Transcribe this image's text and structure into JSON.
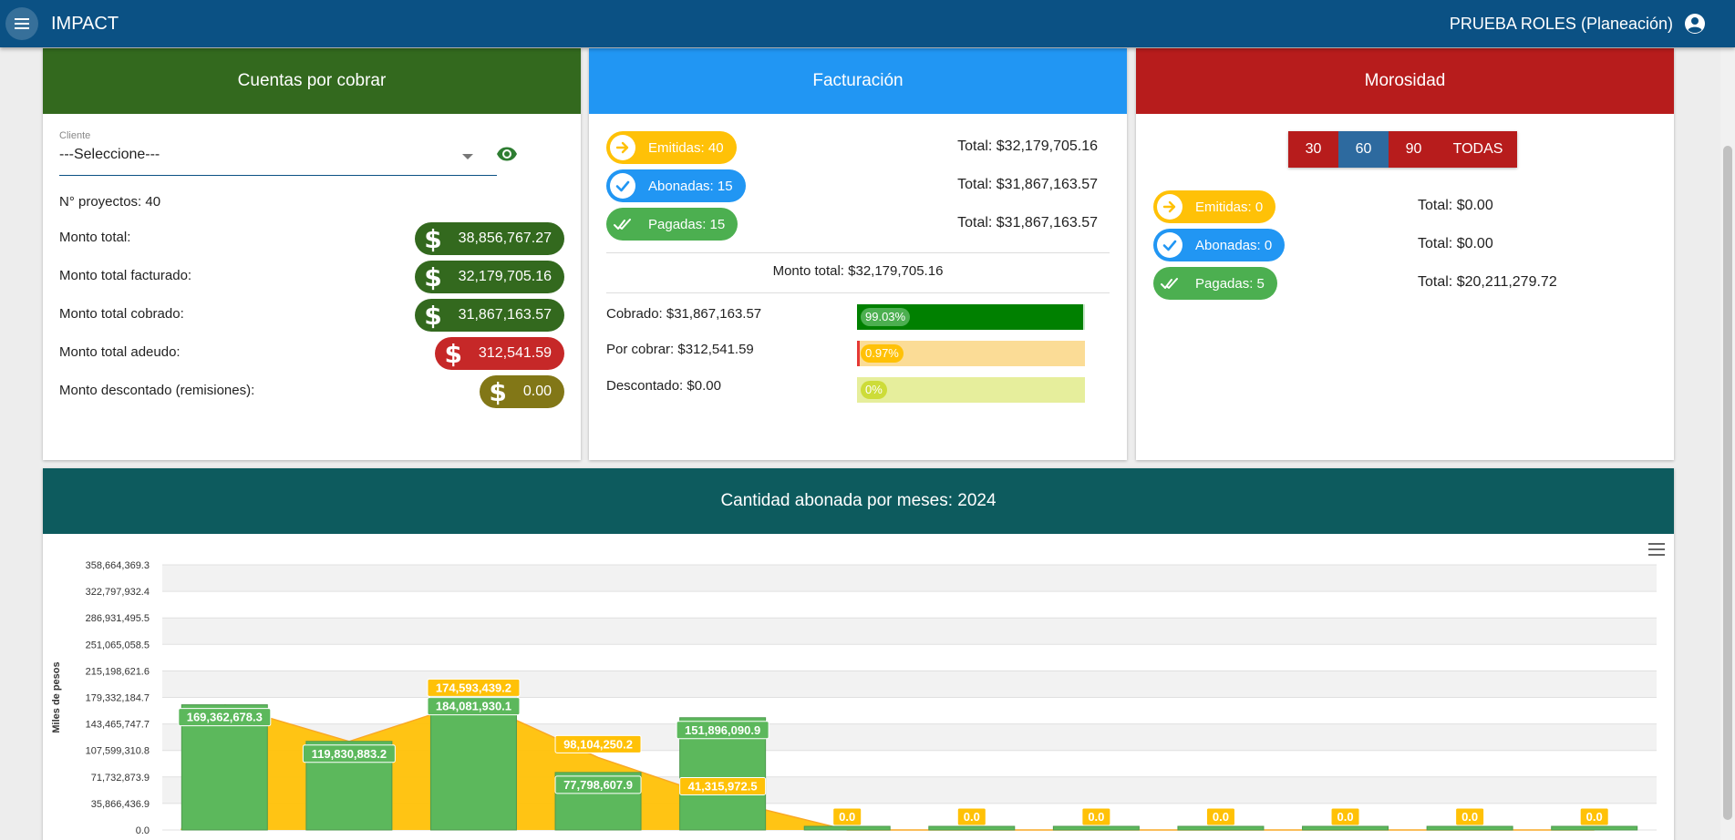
{
  "app": {
    "title": "IMPACT",
    "user": "PRUEBA ROLES (Planeación)"
  },
  "cuentas": {
    "header": "Cuentas por cobrar",
    "select_label": "Cliente",
    "select_value": "---Seleccione---",
    "proyectos": "N° proyectos: 40",
    "rows": [
      {
        "label": "Monto total:",
        "value": "38,856,767.27",
        "color": "#33691e"
      },
      {
        "label": "Monto total facturado:",
        "value": "32,179,705.16",
        "color": "#33691e"
      },
      {
        "label": "Monto total cobrado:",
        "value": "31,867,163.57",
        "color": "#33691e"
      },
      {
        "label": "Monto total adeudo:",
        "value": "312,541.59",
        "color": "#c62828"
      },
      {
        "label": "Monto descontado (remisiones):",
        "value": "0.00",
        "color": "#827717"
      }
    ]
  },
  "facturacion": {
    "header": "Facturación",
    "chips": [
      {
        "label": "Emitidas: 40",
        "total": "Total: $32,179,705.16",
        "icon": "arrow-right-circle-icon"
      },
      {
        "label": "Abonadas: 15",
        "total": "Total: $31,867,163.57",
        "icon": "check-circle-icon"
      },
      {
        "label": "Pagadas: 15",
        "total": "Total: $31,867,163.57",
        "icon": "double-check-icon"
      }
    ],
    "monto_total": "Monto total: $32,179,705.16",
    "progress": [
      {
        "label": "Cobrado: $31,867,163.57",
        "badge": "99.03%",
        "fraction": 0.9903,
        "fill": "#008000",
        "track": "#c8e6c9",
        "badge_color": "#4caf50"
      },
      {
        "label": "Por cobrar: $312,541.59",
        "badge": "0.97%",
        "fraction": 0.0097,
        "fill": "#e53935",
        "track": "#fbdc96",
        "badge_color": "#ffc107"
      },
      {
        "label": "Descontado: $0.00",
        "badge": "0%",
        "fraction": 0,
        "fill": "#c0ca33",
        "track": "#e6ee9c",
        "badge_color": "#cddc39"
      }
    ]
  },
  "morosidad": {
    "header": "Morosidad",
    "segments": [
      "30",
      "60",
      "90",
      "TODAS"
    ],
    "active_segment": "60",
    "chips": [
      {
        "label": "Emitidas: 0",
        "total": "Total: $0.00"
      },
      {
        "label": "Abonadas: 0",
        "total": "Total: $0.00"
      },
      {
        "label": "Pagadas: 5",
        "total": "Total: $20,211,279.72"
      }
    ]
  },
  "chart_header": "Cantidad abonada por meses: 2024",
  "chart_data": {
    "type": "bar",
    "title": "Cantidad abonada por meses: 2024",
    "ylabel": "Miles de pesos",
    "ylim": [
      0,
      358664369.3
    ],
    "y_ticks": [
      "358,664,369.3",
      "322,797,932.4",
      "286,931,495.5",
      "251,065,058.5",
      "215,198,621.6",
      "179,332,184.7",
      "143,465,747.7",
      "107,599,310.8",
      "71,732,873.9",
      "35,866,436.9",
      "0.0"
    ],
    "grid": true,
    "series": [
      {
        "type": "area",
        "color": "#ffc107",
        "values": [
          169362678.3,
          119830883.2,
          174593439.2,
          98104250.2,
          41315972.5,
          0,
          0,
          0,
          0,
          0,
          0,
          0
        ],
        "labels": [
          "",
          "",
          "174,593,439.2",
          "98,104,250.2",
          "41,315,972.5",
          "0.0",
          "0.0",
          "0.0",
          "0.0",
          "0.0",
          "0.0",
          "0.0"
        ]
      },
      {
        "type": "bar",
        "color": "#5cb85c",
        "values": [
          169362678.3,
          119830883.2,
          184081930.1,
          77798607.9,
          151896090.9,
          0,
          0,
          0,
          0,
          0,
          0,
          0
        ],
        "labels": [
          "169,362,678.3",
          "119,830,883.2",
          "184,081,930.1",
          "77,798,607.9",
          "151,896,090.9",
          "",
          "",
          "",
          "",
          "",
          "",
          ""
        ]
      }
    ]
  }
}
